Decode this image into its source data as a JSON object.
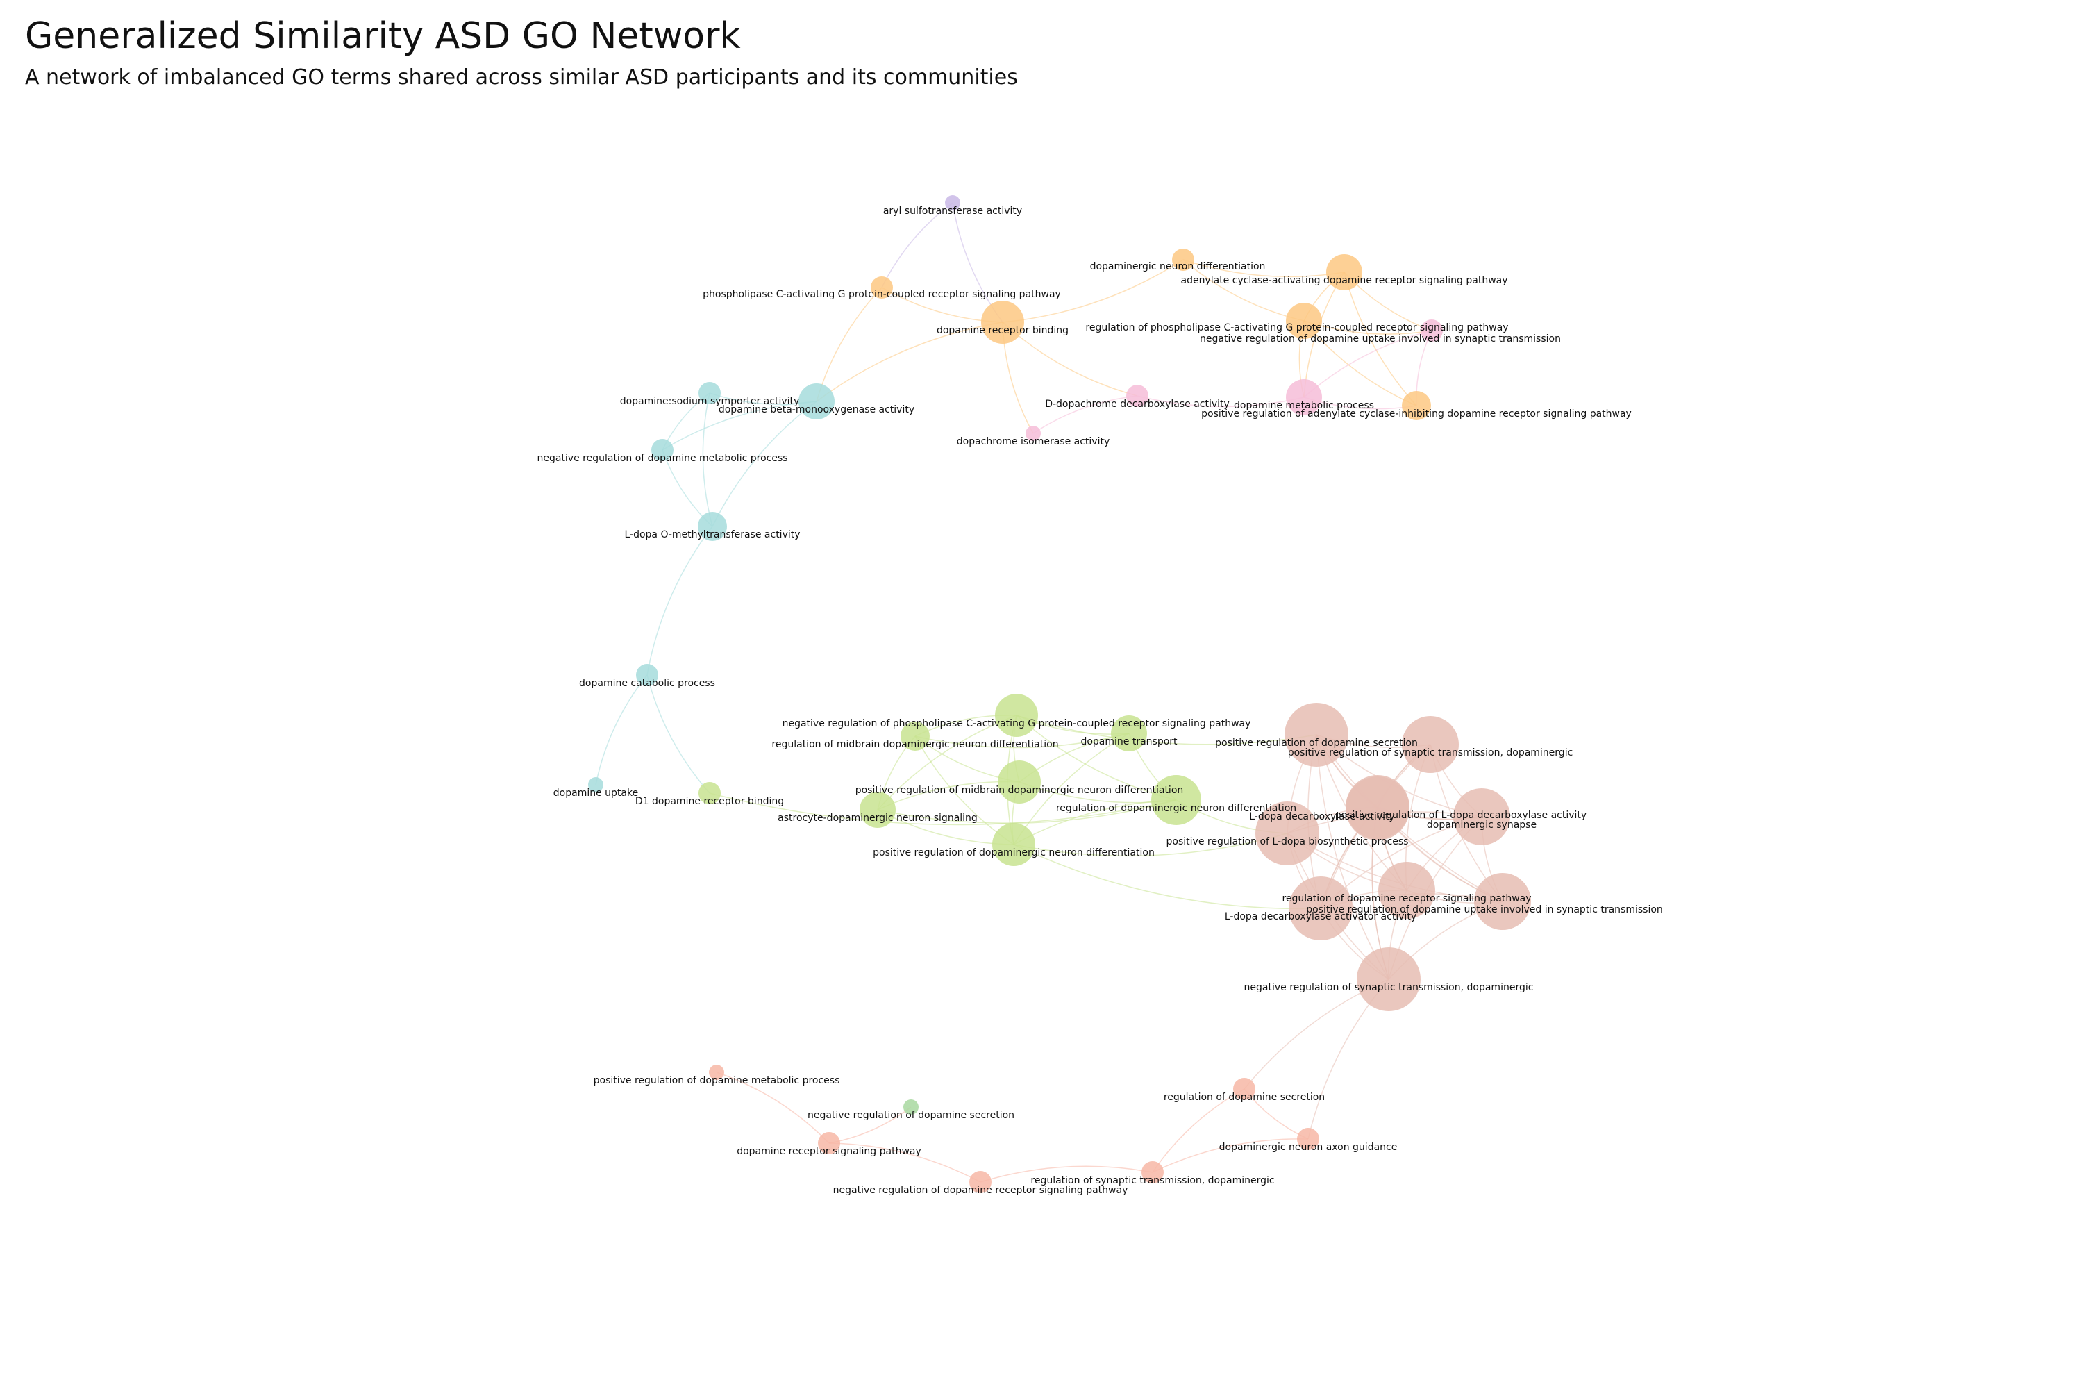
{
  "title": "Generalized Similarity ASD GO Network",
  "subtitle": "A network of imbalanced GO terms shared across similar ASD participants and its communities",
  "colors": {
    "teal": "#a6dcdc",
    "orange": "#fdc882",
    "pink": "#f6bdd8",
    "purple": "#c9b8e6",
    "green": "#c8e391",
    "rose": "#e6bdb3",
    "salmon": "#f7b7a6",
    "lightgreen": "#a8d8a0"
  },
  "nodes": [
    {
      "id": "aryl_sulfo",
      "label": "aryl sulfotransferase activity",
      "color": "purple",
      "size": 1
    },
    {
      "id": "plc_gpcr",
      "label": "phospholipase C-activating G protein-coupled receptor signaling pathway",
      "color": "orange",
      "size": 2
    },
    {
      "id": "da_neuron_diff",
      "label": "dopaminergic neuron differentiation",
      "color": "orange",
      "size": 2
    },
    {
      "id": "ac_da_receptor",
      "label": "adenylate cyclase-activating dopamine receptor signaling pathway",
      "color": "orange",
      "size": 4
    },
    {
      "id": "da_receptor_binding",
      "label": "dopamine receptor binding",
      "color": "orange",
      "size": 5
    },
    {
      "id": "reg_plc_gpcr",
      "label": "regulation of phospholipase C-activating G protein-coupled receptor signaling pathway",
      "color": "orange",
      "size": 4
    },
    {
      "id": "neg_reg_da_uptake",
      "label": "negative regulation of dopamine uptake involved in synaptic transmission",
      "color": "pink",
      "size": 2
    },
    {
      "id": "da_na_symporter",
      "label": "dopamine:sodium symporter activity",
      "color": "teal",
      "size": 2
    },
    {
      "id": "da_beta_mono",
      "label": "dopamine beta-monooxygenase activity",
      "color": "teal",
      "size": 4
    },
    {
      "id": "d_dopachrome",
      "label": "D-dopachrome decarboxylase activity",
      "color": "pink",
      "size": 2
    },
    {
      "id": "da_metabolic",
      "label": "dopamine metabolic process",
      "color": "pink",
      "size": 4
    },
    {
      "id": "pos_reg_ac_inhib",
      "label": "positive regulation of adenylate cyclase-inhibiting dopamine receptor signaling pathway",
      "color": "orange",
      "size": 3
    },
    {
      "id": "dopachrome_iso",
      "label": "dopachrome isomerase activity",
      "color": "pink",
      "size": 1
    },
    {
      "id": "neg_reg_da_metabolic",
      "label": "negative regulation of dopamine metabolic process",
      "color": "teal",
      "size": 2
    },
    {
      "id": "ldopa_omt",
      "label": "L-dopa O-methyltransferase activity",
      "color": "teal",
      "size": 3
    },
    {
      "id": "da_catabolic",
      "label": "dopamine catabolic process",
      "color": "teal",
      "size": 2
    },
    {
      "id": "da_uptake",
      "label": "dopamine uptake",
      "color": "teal",
      "size": 1
    },
    {
      "id": "d1_binding",
      "label": "D1 dopamine receptor binding",
      "color": "green",
      "size": 2
    },
    {
      "id": "neg_reg_plc",
      "label": "negative regulation of phospholipase C-activating G protein-coupled receptor signaling pathway",
      "color": "green",
      "size": 5
    },
    {
      "id": "reg_midbrain",
      "label": "regulation of midbrain dopaminergic neuron differentiation",
      "color": "green",
      "size": 3
    },
    {
      "id": "da_transport",
      "label": "dopamine transport",
      "color": "green",
      "size": 4
    },
    {
      "id": "pos_reg_midbrain",
      "label": "positive regulation of midbrain dopaminergic neuron differentiation",
      "color": "green",
      "size": 5
    },
    {
      "id": "astrocyte",
      "label": "astrocyte-dopaminergic neuron signaling",
      "color": "green",
      "size": 4
    },
    {
      "id": "reg_da_neuron_diff",
      "label": "regulation of dopaminergic neuron differentiation",
      "color": "green",
      "size": 6
    },
    {
      "id": "pos_reg_da_neuron_diff",
      "label": "positive regulation of dopaminergic neuron differentiation",
      "color": "green",
      "size": 5
    },
    {
      "id": "pos_reg_da_secretion",
      "label": "positive regulation of dopamine secretion",
      "color": "rose",
      "size": 8
    },
    {
      "id": "pos_reg_syn_trans",
      "label": "positive regulation of synaptic transmission, dopaminergic",
      "color": "rose",
      "size": 7
    },
    {
      "id": "ldopa_decarb",
      "label": "L-dopa decarboxylase activity",
      "color": "rose",
      "size": 8
    },
    {
      "id": "pos_reg_ldopa_decarb",
      "label": "positive regulation of L-dopa decarboxylase activity",
      "color": "rose",
      "size": 8
    },
    {
      "id": "da_synapse",
      "label": "dopaminergic synapse",
      "color": "rose",
      "size": 7
    },
    {
      "id": "pos_reg_ldopa_bio",
      "label": "positive regulation of L-dopa biosynthetic process",
      "color": "rose",
      "size": 8
    },
    {
      "id": "reg_da_receptor",
      "label": "regulation of dopamine receptor signaling pathway",
      "color": "rose",
      "size": 7
    },
    {
      "id": "pos_reg_da_uptake",
      "label": "positive regulation of dopamine uptake involved in synaptic transmission",
      "color": "rose",
      "size": 7
    },
    {
      "id": "ldopa_activator",
      "label": "L-dopa decarboxylase activator activity",
      "color": "rose",
      "size": 8
    },
    {
      "id": "neg_reg_syn_trans",
      "label": "negative regulation of synaptic transmission, dopaminergic",
      "color": "rose",
      "size": 8
    },
    {
      "id": "pos_reg_da_metabolic",
      "label": "positive regulation of dopamine metabolic process",
      "color": "salmon",
      "size": 1
    },
    {
      "id": "neg_reg_da_secretion",
      "label": "negative regulation of dopamine secretion",
      "color": "lightgreen",
      "size": 1
    },
    {
      "id": "da_receptor_signaling",
      "label": "dopamine receptor signaling pathway",
      "color": "salmon",
      "size": 2
    },
    {
      "id": "reg_da_secretion",
      "label": "regulation of dopamine secretion",
      "color": "salmon",
      "size": 2
    },
    {
      "id": "da_axon_guidance",
      "label": "dopaminergic neuron axon guidance",
      "color": "salmon",
      "size": 2
    },
    {
      "id": "neg_reg_da_receptor",
      "label": "negative regulation of dopamine receptor signaling pathway",
      "color": "salmon",
      "size": 2
    },
    {
      "id": "reg_syn_trans",
      "label": "regulation of synaptic transmission, dopaminergic",
      "color": "salmon",
      "size": 2
    }
  ],
  "edges": [
    [
      "aryl_sulfo",
      "plc_gpcr"
    ],
    [
      "aryl_sulfo",
      "da_receptor_binding"
    ],
    [
      "plc_gpcr",
      "da_receptor_binding"
    ],
    [
      "plc_gpcr",
      "da_beta_mono"
    ],
    [
      "da_receptor_binding",
      "da_neuron_diff"
    ],
    [
      "da_receptor_binding",
      "da_beta_mono"
    ],
    [
      "da_receptor_binding",
      "d_dopachrome"
    ],
    [
      "da_receptor_binding",
      "dopachrome_iso"
    ],
    [
      "da_neuron_diff",
      "reg_plc_gpcr"
    ],
    [
      "da_neuron_diff",
      "ac_da_receptor"
    ],
    [
      "ac_da_receptor",
      "reg_plc_gpcr"
    ],
    [
      "ac_da_receptor",
      "neg_reg_da_uptake"
    ],
    [
      "ac_da_receptor",
      "pos_reg_ac_inhib"
    ],
    [
      "ac_da_receptor",
      "da_metabolic"
    ],
    [
      "reg_plc_gpcr",
      "neg_reg_da_uptake"
    ],
    [
      "reg_plc_gpcr",
      "pos_reg_ac_inhib"
    ],
    [
      "reg_plc_gpcr",
      "da_metabolic"
    ],
    [
      "neg_reg_da_uptake",
      "pos_reg_ac_inhib"
    ],
    [
      "neg_reg_da_uptake",
      "da_metabolic"
    ],
    [
      "da_metabolic",
      "pos_reg_ac_inhib"
    ],
    [
      "d_dopachrome",
      "da_metabolic"
    ],
    [
      "d_dopachrome",
      "dopachrome_iso"
    ],
    [
      "da_na_symporter",
      "da_beta_mono"
    ],
    [
      "da_na_symporter",
      "neg_reg_da_metabolic"
    ],
    [
      "da_na_symporter",
      "ldopa_omt"
    ],
    [
      "da_beta_mono",
      "neg_reg_da_metabolic"
    ],
    [
      "da_beta_mono",
      "ldopa_omt"
    ],
    [
      "neg_reg_da_metabolic",
      "ldopa_omt"
    ],
    [
      "ldopa_omt",
      "da_catabolic"
    ],
    [
      "da_catabolic",
      "da_uptake"
    ],
    [
      "da_catabolic",
      "d1_binding"
    ],
    [
      "d1_binding",
      "reg_da_neuron_diff"
    ],
    [
      "neg_reg_plc",
      "reg_midbrain"
    ],
    [
      "neg_reg_plc",
      "pos_reg_midbrain"
    ],
    [
      "neg_reg_plc",
      "astrocyte"
    ],
    [
      "neg_reg_plc",
      "reg_da_neuron_diff"
    ],
    [
      "neg_reg_plc",
      "pos_reg_da_neuron_diff"
    ],
    [
      "neg_reg_plc",
      "da_transport"
    ],
    [
      "neg_reg_plc",
      "pos_reg_da_secretion"
    ],
    [
      "reg_midbrain",
      "pos_reg_midbrain"
    ],
    [
      "reg_midbrain",
      "astrocyte"
    ],
    [
      "reg_midbrain",
      "pos_reg_da_neuron_diff"
    ],
    [
      "reg_midbrain",
      "da_transport"
    ],
    [
      "da_transport",
      "pos_reg_midbrain"
    ],
    [
      "da_transport",
      "reg_da_neuron_diff"
    ],
    [
      "da_transport",
      "pos_reg_da_neuron_diff"
    ],
    [
      "pos_reg_midbrain",
      "astrocyte"
    ],
    [
      "pos_reg_midbrain",
      "reg_da_neuron_diff"
    ],
    [
      "pos_reg_midbrain",
      "pos_reg_da_neuron_diff"
    ],
    [
      "astrocyte",
      "pos_reg_da_neuron_diff"
    ],
    [
      "astrocyte",
      "reg_da_neuron_diff"
    ],
    [
      "reg_da_neuron_diff",
      "pos_reg_da_neuron_diff"
    ],
    [
      "reg_da_neuron_diff",
      "pos_reg_ldopa_bio"
    ],
    [
      "pos_reg_da_neuron_diff",
      "pos_reg_ldopa_bio"
    ],
    [
      "pos_reg_da_neuron_diff",
      "ldopa_activator"
    ],
    [
      "pos_reg_da_secretion",
      "pos_reg_syn_trans"
    ],
    [
      "pos_reg_da_secretion",
      "ldopa_decarb"
    ],
    [
      "pos_reg_da_secretion",
      "pos_reg_ldopa_decarb"
    ],
    [
      "pos_reg_da_secretion",
      "da_synapse"
    ],
    [
      "pos_reg_da_secretion",
      "pos_reg_ldopa_bio"
    ],
    [
      "pos_reg_da_secretion",
      "reg_da_receptor"
    ],
    [
      "pos_reg_da_secretion",
      "pos_reg_da_uptake"
    ],
    [
      "pos_reg_da_secretion",
      "ldopa_activator"
    ],
    [
      "pos_reg_da_secretion",
      "neg_reg_syn_trans"
    ],
    [
      "pos_reg_syn_trans",
      "pos_reg_ldopa_decarb"
    ],
    [
      "pos_reg_syn_trans",
      "da_synapse"
    ],
    [
      "pos_reg_syn_trans",
      "ldopa_decarb"
    ],
    [
      "pos_reg_syn_trans",
      "reg_da_receptor"
    ],
    [
      "pos_reg_syn_trans",
      "pos_reg_da_uptake"
    ],
    [
      "pos_reg_syn_trans",
      "ldopa_activator"
    ],
    [
      "ldopa_decarb",
      "pos_reg_ldopa_decarb"
    ],
    [
      "ldopa_decarb",
      "da_synapse"
    ],
    [
      "ldopa_decarb",
      "reg_da_receptor"
    ],
    [
      "ldopa_decarb",
      "pos_reg_da_uptake"
    ],
    [
      "ldopa_decarb",
      "ldopa_activator"
    ],
    [
      "ldopa_decarb",
      "neg_reg_syn_trans"
    ],
    [
      "pos_reg_ldopa_decarb",
      "da_synapse"
    ],
    [
      "pos_reg_ldopa_decarb",
      "pos_reg_ldopa_bio"
    ],
    [
      "pos_reg_ldopa_decarb",
      "reg_da_receptor"
    ],
    [
      "pos_reg_ldopa_decarb",
      "pos_reg_da_uptake"
    ],
    [
      "pos_reg_ldopa_decarb",
      "ldopa_activator"
    ],
    [
      "pos_reg_ldopa_decarb",
      "neg_reg_syn_trans"
    ],
    [
      "da_synapse",
      "pos_reg_ldopa_bio"
    ],
    [
      "da_synapse",
      "reg_da_receptor"
    ],
    [
      "da_synapse",
      "pos_reg_da_uptake"
    ],
    [
      "da_synapse",
      "ldopa_activator"
    ],
    [
      "da_synapse",
      "neg_reg_syn_trans"
    ],
    [
      "pos_reg_ldopa_bio",
      "reg_da_receptor"
    ],
    [
      "pos_reg_ldopa_bio",
      "pos_reg_da_uptake"
    ],
    [
      "pos_reg_ldopa_bio",
      "ldopa_activator"
    ],
    [
      "pos_reg_ldopa_bio",
      "neg_reg_syn_trans"
    ],
    [
      "reg_da_receptor",
      "pos_reg_da_uptake"
    ],
    [
      "reg_da_receptor",
      "ldopa_activator"
    ],
    [
      "reg_da_receptor",
      "neg_reg_syn_trans"
    ],
    [
      "pos_reg_da_uptake",
      "ldopa_activator"
    ],
    [
      "pos_reg_da_uptake",
      "neg_reg_syn_trans"
    ],
    [
      "ldopa_activator",
      "neg_reg_syn_trans"
    ],
    [
      "neg_reg_syn_trans",
      "reg_da_secretion"
    ],
    [
      "neg_reg_syn_trans",
      "da_axon_guidance"
    ],
    [
      "reg_da_secretion",
      "da_axon_guidance"
    ],
    [
      "reg_da_secretion",
      "reg_syn_trans"
    ],
    [
      "da_axon_guidance",
      "reg_syn_trans"
    ],
    [
      "reg_syn_trans",
      "neg_reg_da_receptor"
    ],
    [
      "neg_reg_da_receptor",
      "da_receptor_signaling"
    ],
    [
      "da_receptor_signaling",
      "pos_reg_da_metabolic"
    ],
    [
      "da_receptor_signaling",
      "neg_reg_da_secretion"
    ]
  ]
}
